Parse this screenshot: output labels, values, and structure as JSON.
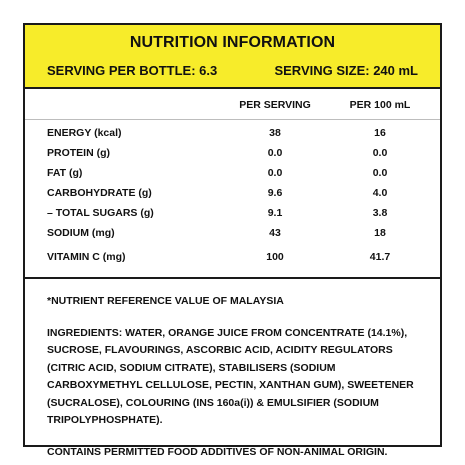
{
  "header": {
    "title": "NUTRITION INFORMATION",
    "serving_per_bottle": "SERVING PER BOTTLE: 6.3",
    "serving_size": "SERVING SIZE: 240 mL"
  },
  "columns": {
    "per_serving": "PER SERVING",
    "per_100ml": "PER 100 mL"
  },
  "rows": [
    {
      "label": "ENERGY (kcal)",
      "per_serving": "38",
      "per_100ml": "16"
    },
    {
      "label": "PROTEIN (g)",
      "per_serving": "0.0",
      "per_100ml": "0.0"
    },
    {
      "label": "FAT (g)",
      "per_serving": "0.0",
      "per_100ml": "0.0"
    },
    {
      "label": "CARBOHYDRATE (g)",
      "per_serving": "9.6",
      "per_100ml": "4.0"
    },
    {
      "label": "– TOTAL SUGARS (g)",
      "per_serving": "9.1",
      "per_100ml": "3.8"
    },
    {
      "label": "SODIUM (mg)",
      "per_serving": "43",
      "per_100ml": "18"
    },
    {
      "label": "VITAMIN C (mg)",
      "per_serving": "100",
      "per_100ml": "41.7"
    }
  ],
  "notes": {
    "nrv": "*NUTRIENT REFERENCE VALUE OF MALAYSIA",
    "ingredients": "INGREDIENTS: WATER, ORANGE JUICE FROM CONCENTRATE (14.1%), SUCROSE, FLAVOURINGS, ASCORBIC ACID, ACIDITY REGULATORS (CITRIC ACID, SODIUM CITRATE), STABILISERS (SODIUM CARBOXYMETHYL CELLULOSE, PECTIN, XANTHAN GUM), SWEETENER (SUCRALOSE), COLOURING (INS 160a(i)) & EMULSIFIER (SODIUM TRIPOLYPHOSPHATE).",
    "additives": "CONTAINS PERMITTED FOOD ADDITIVES OF NON-ANIMAL ORIGIN."
  },
  "colors": {
    "header_background": "#f7ec2a",
    "border": "#1a1a1a"
  }
}
